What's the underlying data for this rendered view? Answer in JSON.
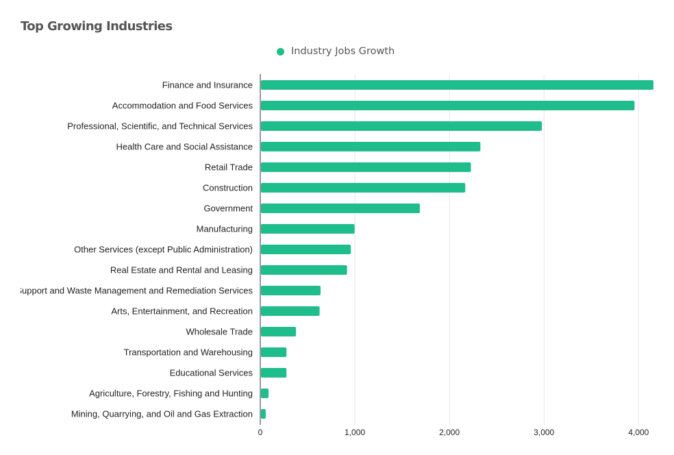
{
  "chart_data": {
    "type": "bar",
    "orientation": "horizontal",
    "title": "Top Growing Industries",
    "legend": {
      "position": "top",
      "entries": [
        "Industry Jobs Growth"
      ]
    },
    "xlim": [
      0,
      4150
    ],
    "xticks": [
      0,
      1000,
      2000,
      3000,
      4000
    ],
    "xtick_labels": [
      "0",
      "1,000",
      "2,000",
      "3,000",
      "4,000"
    ],
    "grid": true,
    "categories": [
      "Finance and Insurance",
      "Accommodation and Food Services",
      "Professional, Scientific, and Technical Services",
      "Health Care and Social Assistance",
      "Retail Trade",
      "Construction",
      "Government",
      "Manufacturing",
      "Other Services (except Public Administration)",
      "Real Estate and Rental and Leasing",
      "Administrative and Support and Waste Management and Remediation Services",
      "Arts, Entertainment, and Recreation",
      "Wholesale Trade",
      "Transportation and Warehousing",
      "Educational Services",
      "Agriculture, Forestry, Fishing and Hunting",
      "Mining, Quarrying, and Oil and Gas Extraction"
    ],
    "series": [
      {
        "name": "Industry Jobs Growth",
        "color": "#1fbc8c",
        "values": [
          4150,
          3950,
          2970,
          2320,
          2220,
          2160,
          1680,
          990,
          950,
          910,
          630,
          620,
          370,
          270,
          270,
          80,
          50
        ]
      }
    ]
  }
}
